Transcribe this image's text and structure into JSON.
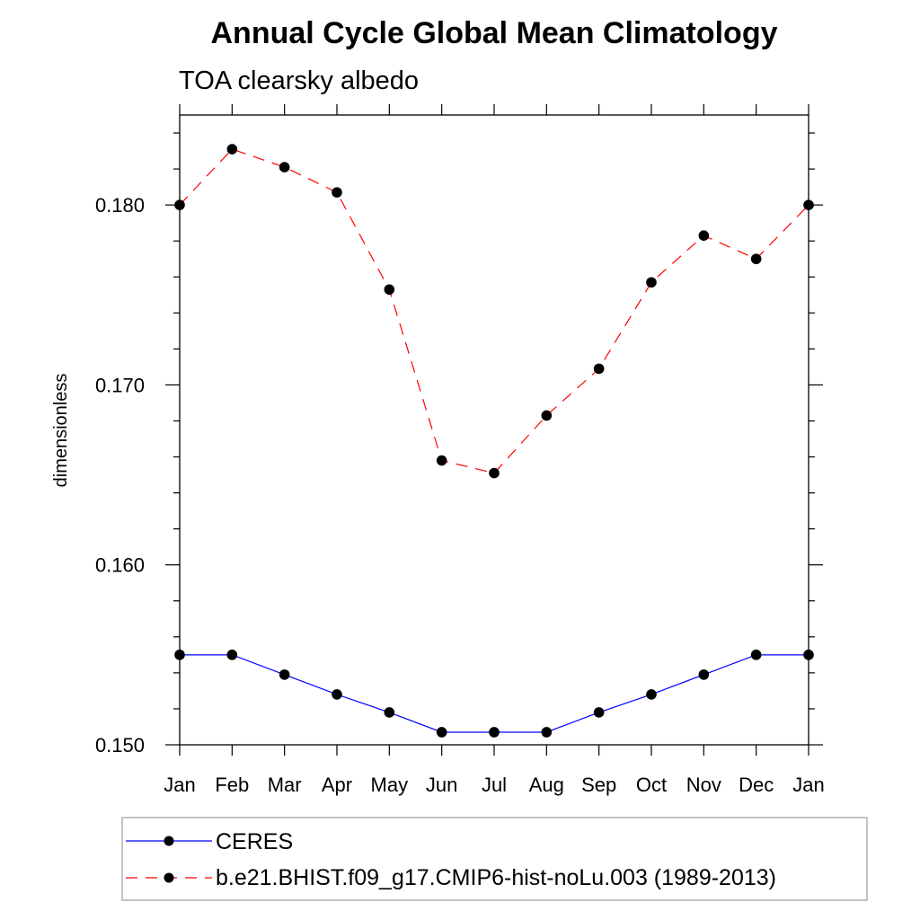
{
  "chart_data": {
    "type": "line",
    "title": "Annual Cycle Global Mean Climatology",
    "subtitle": "TOA clearsky albedo",
    "xlabel": "",
    "ylabel": "dimensionless",
    "categories": [
      "Jan",
      "Feb",
      "Mar",
      "Apr",
      "May",
      "Jun",
      "Jul",
      "Aug",
      "Sep",
      "Oct",
      "Nov",
      "Dec",
      "Jan"
    ],
    "ylim": [
      0.15,
      0.185
    ],
    "yticks": [
      0.15,
      0.16,
      0.17,
      0.18
    ],
    "ytick_labels": [
      "0.150",
      "0.160",
      "0.170",
      "0.180"
    ],
    "grid": false,
    "legend_position": "bottom",
    "series": [
      {
        "name": "CERES",
        "color": "#0000ff",
        "line_style": "solid",
        "values": [
          0.155,
          0.155,
          0.1539,
          0.1528,
          0.1518,
          0.1507,
          0.1507,
          0.1507,
          0.1518,
          0.1528,
          0.1539,
          0.155,
          0.155
        ]
      },
      {
        "name": "b.e21.BHIST.f09_g17.CMIP6-hist-noLu.003 (1989-2013)",
        "color": "#ff0000",
        "line_style": "dashed",
        "values": [
          0.18,
          0.1831,
          0.1821,
          0.1807,
          0.1753,
          0.1658,
          0.1651,
          0.1683,
          0.1709,
          0.1757,
          0.1783,
          0.177,
          0.18
        ]
      }
    ]
  }
}
